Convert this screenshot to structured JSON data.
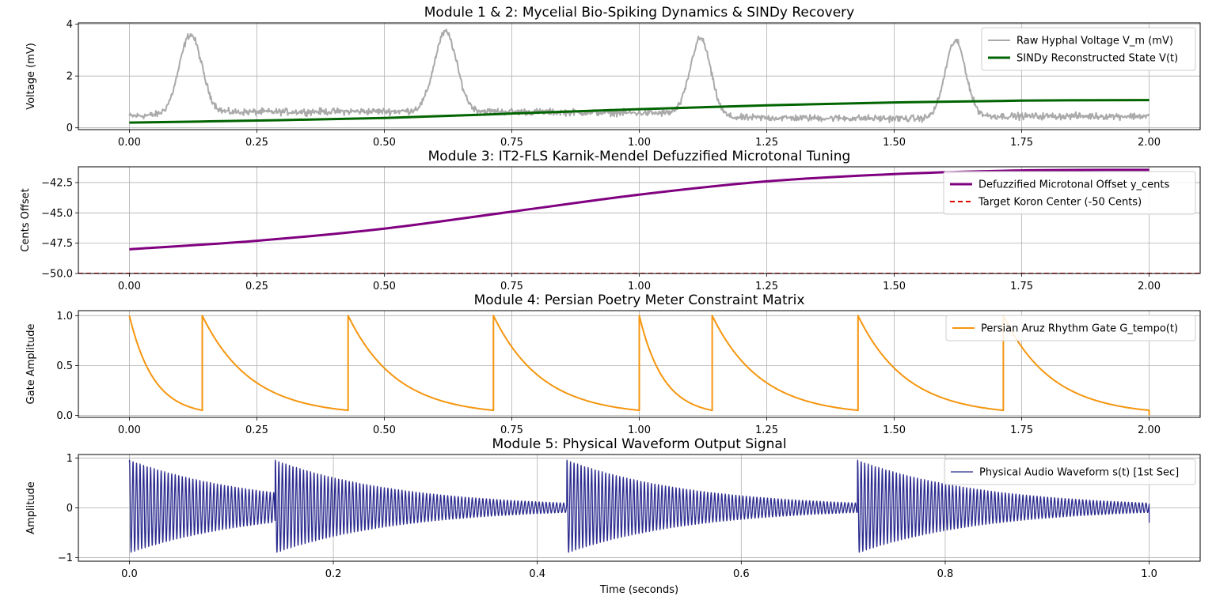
{
  "chart_data": [
    {
      "type": "line",
      "title": "Module 1 & 2: Mycelial Bio-Spiking Dynamics & SINDy Recovery",
      "xlabel": "",
      "ylabel": "Voltage (mV)",
      "xlim": [
        -0.1,
        2.1
      ],
      "ylim": [
        -0.07,
        4.05
      ],
      "xticks": [
        0.0,
        0.25,
        0.5,
        0.75,
        1.0,
        1.25,
        1.5,
        1.75,
        2.0
      ],
      "xtick_labels": [
        "0.00",
        "0.25",
        "0.50",
        "0.75",
        "1.00",
        "1.25",
        "1.50",
        "1.75",
        "2.00"
      ],
      "yticks": [
        0,
        2,
        4
      ],
      "ytick_labels": [
        "0",
        "2",
        "4"
      ],
      "grid": true,
      "legend": "top-right",
      "series": [
        {
          "name": "Raw Hyphal Voltage V_m (mV)",
          "color": "#aaaaaa",
          "width": 2,
          "gen": {
            "kind": "noisy_spikes",
            "x_range": [
              0,
              2
            ],
            "n": 1500,
            "noise": 0.09,
            "segments": [
              {
                "x": [
                  0,
                  0.12
                ],
                "base": [
                  0.45,
                  0.55
                ]
              },
              {
                "x": [
                  0.12,
                  0.62
                ],
                "base": [
                  0.6,
                  0.65
                ]
              },
              {
                "x": [
                  0.62,
                  1.12
                ],
                "base": [
                  0.65,
                  0.55
                ]
              },
              {
                "x": [
                  1.12,
                  1.62
                ],
                "base": [
                  0.4,
                  0.35
                ]
              },
              {
                "x": [
                  1.62,
                  2.0
                ],
                "base": [
                  0.45,
                  0.45
                ]
              }
            ],
            "spikes": [
              {
                "center": 0.12,
                "peak": 3.6,
                "width": 0.022
              },
              {
                "center": 0.62,
                "peak": 3.7,
                "width": 0.022
              },
              {
                "center": 1.12,
                "peak": 3.45,
                "width": 0.02
              },
              {
                "center": 1.62,
                "peak": 3.35,
                "width": 0.02
              }
            ]
          }
        },
        {
          "name": "SINDy Reconstructed State V(t)",
          "color": "#006400",
          "width": 3,
          "x": [
            0,
            0.25,
            0.5,
            0.75,
            1.0,
            1.25,
            1.5,
            1.75,
            2.0
          ],
          "y": [
            0.2,
            0.28,
            0.38,
            0.55,
            0.72,
            0.87,
            0.98,
            1.05,
            1.07
          ]
        }
      ]
    },
    {
      "type": "line",
      "title": "Module 3: IT2-FLS Karnik-Mendel Defuzzified Microtonal Tuning",
      "xlabel": "",
      "ylabel": "Cents Offset",
      "xlim": [
        -0.1,
        2.1
      ],
      "ylim": [
        -50.0,
        -41.2
      ],
      "xticks": [
        0.0,
        0.25,
        0.5,
        0.75,
        1.0,
        1.25,
        1.5,
        1.75,
        2.0
      ],
      "xtick_labels": [
        "0.00",
        "0.25",
        "0.50",
        "0.75",
        "1.00",
        "1.25",
        "1.50",
        "1.75",
        "2.00"
      ],
      "yticks": [
        -50.0,
        -47.5,
        -45.0,
        -42.5
      ],
      "ytick_labels": [
        "−50.0",
        "−47.5",
        "−45.0",
        "−42.5"
      ],
      "grid": true,
      "legend": "top-right",
      "series": [
        {
          "name": "Defuzzified Microtonal Offset y_cents",
          "color": "#800080",
          "width": 3,
          "x": [
            0,
            0.25,
            0.5,
            0.75,
            1.0,
            1.25,
            1.5,
            1.75,
            2.0
          ],
          "y": [
            -48.0,
            -47.3,
            -46.3,
            -44.9,
            -43.5,
            -42.4,
            -41.8,
            -41.5,
            -41.45
          ]
        },
        {
          "name": "Target Koron Center (-50 Cents)",
          "color": "#dd0000",
          "width": 2,
          "dash": "6,4",
          "x": [
            -0.1,
            2.1
          ],
          "y": [
            -50.0,
            -50.0
          ]
        }
      ]
    },
    {
      "type": "line",
      "title": "Module 4: Persian Poetry Meter Constraint Matrix",
      "xlabel": "",
      "ylabel": "Gate Amplitude",
      "xlim": [
        -0.1,
        2.1
      ],
      "ylim": [
        -0.02,
        1.05
      ],
      "xticks": [
        0.0,
        0.25,
        0.5,
        0.75,
        1.0,
        1.25,
        1.5,
        1.75,
        2.0
      ],
      "xtick_labels": [
        "0.00",
        "0.25",
        "0.50",
        "0.75",
        "1.00",
        "1.25",
        "1.50",
        "1.75",
        "2.00"
      ],
      "yticks": [
        0.0,
        0.5,
        1.0
      ],
      "ytick_labels": [
        "0.0",
        "0.5",
        "1.0"
      ],
      "grid": true,
      "legend": "top-right",
      "series": [
        {
          "name": "Persian Aruz Rhythm Gate G_tempo(t)",
          "color": "#f5960f",
          "width": 2,
          "gen": {
            "kind": "decay_gate",
            "onsets": [
              0.0,
              0.143,
              0.429,
              0.714,
              1.0,
              1.143,
              1.429,
              1.714
            ],
            "end": 2.0,
            "floor": 0.05
          }
        }
      ]
    },
    {
      "type": "line",
      "title": "Module 5: Physical Waveform Output Signal",
      "xlabel": "Time (seconds)",
      "ylabel": "Amplitude",
      "xlim": [
        -0.05,
        1.05
      ],
      "ylim": [
        -1.07,
        1.07
      ],
      "xticks": [
        0.0,
        0.2,
        0.4,
        0.6,
        0.8,
        1.0
      ],
      "xtick_labels": [
        "0.0",
        "0.2",
        "0.4",
        "0.6",
        "0.8",
        "1.0"
      ],
      "yticks": [
        -1,
        0,
        1
      ],
      "ytick_labels": [
        "−1",
        "0",
        "1"
      ],
      "grid": true,
      "legend": "top-right",
      "series": [
        {
          "name": "Physical Audio Waveform s(t) [1st Sec]",
          "color": "#2b2b8f",
          "width": 1.3,
          "gen": {
            "kind": "plucked_wave",
            "onsets": [
              0.0,
              0.143,
              0.429,
              0.714
            ],
            "end": 1.0,
            "freq": 290,
            "decay": 8.0
          }
        }
      ]
    }
  ]
}
